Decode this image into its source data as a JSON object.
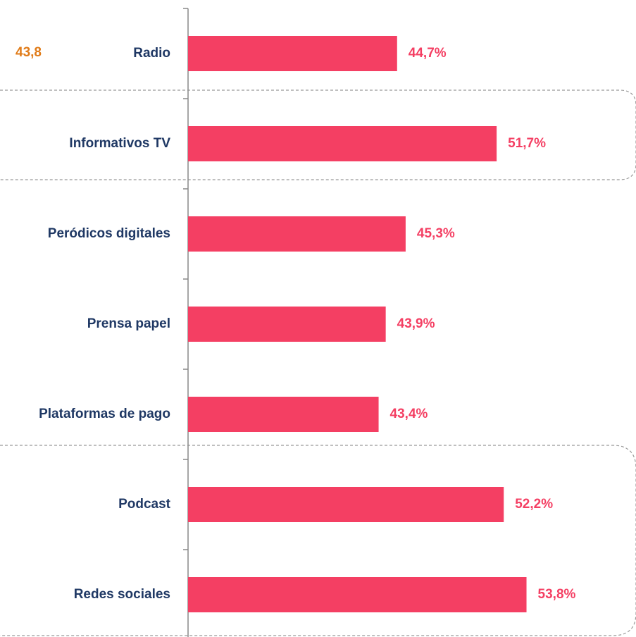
{
  "chart_data": {
    "type": "hbar",
    "annotation": "43,8",
    "categories": [
      "Radio",
      "Informativos TV",
      "Peródicos digitales",
      "Prensa papel",
      "Plataformas de pago",
      "Podcast",
      "Redes sociales"
    ],
    "values": [
      44.7,
      51.7,
      45.3,
      43.9,
      43.4,
      52.2,
      53.8
    ],
    "value_labels": [
      "44,7%",
      "51,7%",
      "45,3%",
      "43,9%",
      "43,4%",
      "52,2%",
      "53,8%"
    ],
    "color": "#f43f63",
    "xlim": [
      30,
      61.5
    ]
  }
}
